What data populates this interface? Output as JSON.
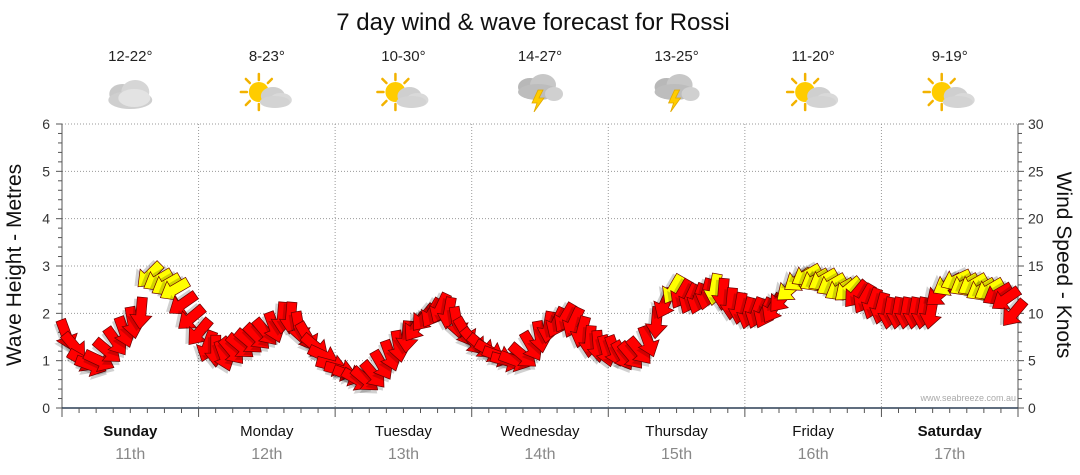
{
  "chart_data": {
    "type": "line",
    "title": "7 day wind & wave forecast for Rossi",
    "ylabel_left": "Wave Height - Metres",
    "ylabel_right": "Wind Speed - Knots",
    "ylim_left": [
      0,
      6
    ],
    "ylim_right": [
      0,
      30
    ],
    "yticks_left": [
      "0",
      "1",
      "2",
      "3",
      "4",
      "5",
      "6"
    ],
    "yticks_right": [
      "0",
      "5",
      "10",
      "15",
      "20",
      "25",
      "30"
    ],
    "credit": "www.seabreeze.com.au",
    "grid": true,
    "days": [
      {
        "name": "Sunday",
        "date": "11th",
        "temp": "12-22°",
        "weather": "cloudy-icon",
        "bold": true
      },
      {
        "name": "Monday",
        "date": "12th",
        "temp": "8-23°",
        "weather": "partly-sunny-icon",
        "bold": false
      },
      {
        "name": "Tuesday",
        "date": "13th",
        "temp": "10-30°",
        "weather": "partly-sunny-icon",
        "bold": false
      },
      {
        "name": "Wednesday",
        "date": "14th",
        "temp": "14-27°",
        "weather": "storm-icon",
        "bold": false
      },
      {
        "name": "Thursday",
        "date": "15th",
        "temp": "13-25°",
        "weather": "storm-icon",
        "bold": false
      },
      {
        "name": "Friday",
        "date": "16th",
        "temp": "11-20°",
        "weather": "partly-sunny-icon",
        "bold": false
      },
      {
        "name": "Saturday",
        "date": "17th",
        "temp": "9-19°",
        "weather": "partly-sunny-icon",
        "bold": true
      }
    ],
    "series": [
      {
        "name": "Wind Speed",
        "unit": "knots",
        "color_strong": "#ff0000",
        "color_light": "#ffff00",
        "values": [
          7.7,
          6.5,
          5.0,
          4.5,
          5.0,
          6.0,
          7.0,
          8.0,
          9.0,
          10.0,
          14.0,
          13.5,
          13.0,
          12.5,
          11.0,
          9.5,
          8.0,
          6.5,
          6.0,
          5.5,
          6.0,
          6.5,
          7.0,
          7.5,
          8.0,
          8.5,
          9.5,
          9.5,
          8.5,
          7.5,
          6.5,
          5.5,
          4.5,
          4.0,
          3.5,
          3.0,
          3.0,
          3.5,
          4.5,
          5.5,
          6.5,
          7.5,
          8.5,
          9.5,
          10.0,
          10.5,
          10.0,
          9.0,
          8.0,
          7.0,
          6.5,
          6.0,
          5.5,
          5.0,
          5.0,
          5.5,
          6.5,
          7.5,
          8.5,
          9.0,
          9.5,
          9.0,
          8.0,
          7.0,
          6.5,
          6.0,
          6.0,
          5.5,
          5.5,
          6.0,
          7.0,
          9.0,
          11.0,
          12.5,
          12.0,
          11.5,
          11.5,
          12.0,
          12.5,
          12.0,
          11.0,
          10.5,
          10.0,
          10.0,
          10.0,
          10.5,
          11.5,
          12.5,
          13.5,
          14.0,
          13.5,
          13.5,
          13.0,
          12.5,
          12.5,
          12.0,
          11.5,
          11.0,
          10.5,
          10.0,
          10.0,
          10.0,
          10.0,
          10.0,
          10.0,
          12.0,
          13.0,
          13.5,
          13.0,
          13.0,
          12.5,
          12.5,
          12.0,
          11.5,
          10.0
        ],
        "direction_deg": [
          70,
          50,
          30,
          20,
          25,
          40,
          55,
          70,
          80,
          95,
          135,
          150,
          150,
          150,
          145,
          140,
          130,
          110,
          90,
          70,
          50,
          40,
          40,
          45,
          50,
          70,
          95,
          95,
          80,
          60,
          40,
          25,
          15,
          15,
          20,
          30,
          40,
          50,
          60,
          70,
          80,
          95,
          125,
          130,
          120,
          115,
          100,
          80,
          60,
          50,
          40,
          30,
          20,
          15,
          20,
          40,
          60,
          80,
          100,
          115,
          120,
          115,
          105,
          95,
          85,
          75,
          70,
          60,
          50,
          50,
          70,
          95,
          115,
          120,
          120,
          115,
          110,
          105,
          100,
          95,
          95,
          100,
          105,
          110,
          115,
          120,
          130,
          140,
          145,
          150,
          150,
          150,
          150,
          150,
          140,
          130,
          120,
          110,
          105,
          100,
          100,
          100,
          100,
          100,
          100,
          140,
          150,
          155,
          150,
          150,
          150,
          150,
          150,
          145,
          130
        ]
      }
    ]
  }
}
